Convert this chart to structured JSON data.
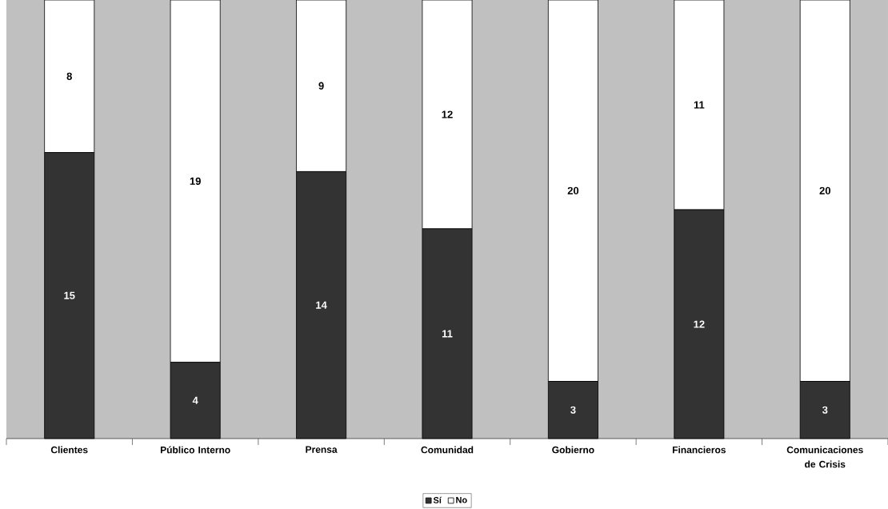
{
  "chart_data": {
    "type": "bar",
    "stacked": true,
    "data_labels": true,
    "legend": "bottom",
    "categories": [
      "Clientes",
      "Público Interno",
      "Prensa",
      "Comunidad",
      "Gobierno",
      "Financieros",
      "Comunicaciones de Crisis"
    ],
    "series": [
      {
        "name": "Sí",
        "color": "#333333",
        "values": [
          15,
          4,
          14,
          11,
          3,
          12,
          3
        ]
      },
      {
        "name": "No",
        "color": "#ffffff",
        "values": [
          8,
          19,
          9,
          12,
          20,
          11,
          20
        ]
      }
    ]
  }
}
